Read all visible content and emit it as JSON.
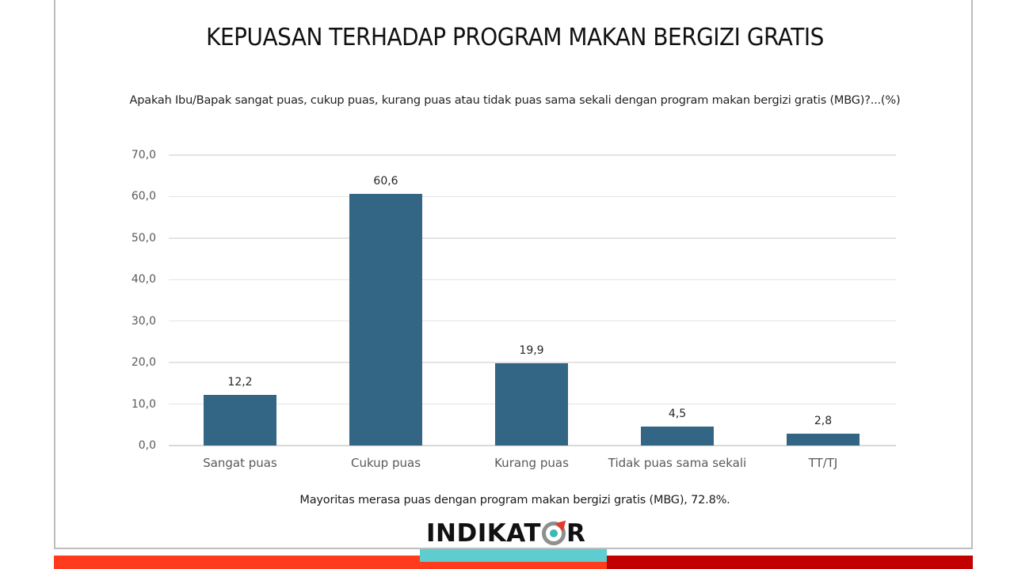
{
  "slide": {
    "title": "KEPUASAN TERHADAP PROGRAM MAKAN BERGIZI GRATIS",
    "subtitle": "Apakah Ibu/Bapak sangat puas, cukup puas, kurang puas atau tidak puas sama sekali dengan program makan bergizi gratis (MBG)?...(%)",
    "note": "Mayoritas merasa puas dengan program makan bergizi gratis (MBG), 72.8%.",
    "logo": {
      "text_before": "INDIKAT",
      "text_after": "R",
      "icon": "target-o-icon"
    },
    "colors": {
      "bar": "#336685",
      "footer_red": "#ff3a1d",
      "footer_dark_red": "#c30000",
      "footer_teal": "#5dcdcf",
      "logo_teal": "#3bb9b5",
      "logo_arrow": "#e53a2a"
    }
  },
  "chart_data": {
    "type": "bar",
    "title": "KEPUASAN TERHADAP PROGRAM MAKAN BERGIZI GRATIS",
    "subtitle": "Apakah Ibu/Bapak sangat puas, cukup puas, kurang puas atau tidak puas sama sekali dengan program makan bergizi gratis (MBG)?...(%)",
    "categories": [
      "Sangat puas",
      "Cukup puas",
      "Kurang puas",
      "Tidak puas sama sekali",
      "TT/TJ"
    ],
    "values": [
      12.2,
      60.6,
      19.9,
      4.5,
      2.8
    ],
    "value_labels": [
      "12,2",
      "60,6",
      "19,9",
      "4,5",
      "2,8"
    ],
    "xlabel": "",
    "ylabel": "",
    "ylim": [
      0,
      70
    ],
    "yticks": [
      0,
      10,
      20,
      30,
      40,
      50,
      60,
      70
    ],
    "ytick_labels": [
      "0,0",
      "10,0",
      "20,0",
      "30,0",
      "40,0",
      "50,0",
      "60,0",
      "70,0"
    ],
    "grid": true,
    "legend": "none",
    "annotation": "Mayoritas merasa puas dengan program makan bergizi gratis (MBG), 72.8%."
  }
}
